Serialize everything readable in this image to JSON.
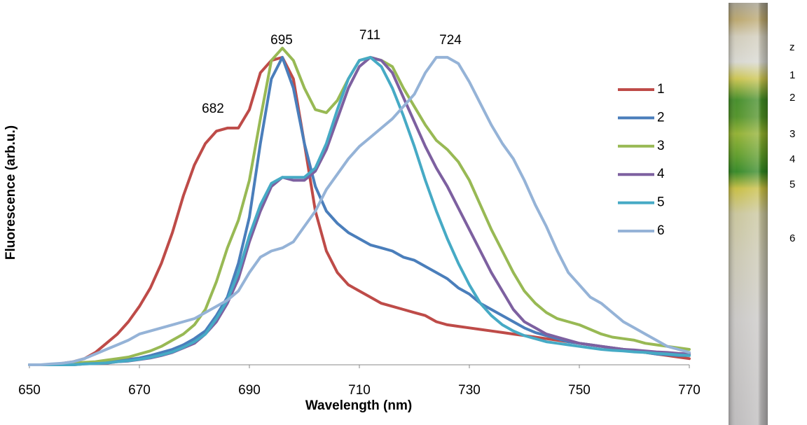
{
  "chart_data": {
    "type": "line",
    "x_label": "Wavelength (nm)",
    "y_label": "Fluorescence (arb.u.)",
    "x": [
      650,
      652,
      654,
      656,
      658,
      660,
      662,
      664,
      666,
      668,
      670,
      672,
      674,
      676,
      678,
      680,
      682,
      684,
      686,
      688,
      690,
      692,
      694,
      696,
      698,
      700,
      702,
      704,
      706,
      708,
      710,
      712,
      714,
      716,
      718,
      720,
      722,
      724,
      726,
      728,
      730,
      732,
      734,
      736,
      738,
      740,
      742,
      744,
      746,
      748,
      750,
      752,
      754,
      756,
      758,
      760,
      762,
      764,
      766,
      768,
      770
    ],
    "xlim": [
      650,
      770
    ],
    "xticks": [
      650,
      670,
      690,
      710,
      730,
      750,
      770
    ],
    "ylim": [
      0,
      1.1
    ],
    "annotations": [
      "682",
      "695",
      "711",
      "724"
    ],
    "series": [
      {
        "name": "1",
        "color": "#be4b48",
        "values": [
          0,
          0,
          0,
          0.005,
          0.01,
          0.02,
          0.04,
          0.07,
          0.1,
          0.14,
          0.19,
          0.25,
          0.33,
          0.43,
          0.55,
          0.65,
          0.72,
          0.76,
          0.77,
          0.77,
          0.83,
          0.95,
          0.99,
          1.0,
          0.93,
          0.72,
          0.5,
          0.37,
          0.3,
          0.26,
          0.24,
          0.22,
          0.2,
          0.19,
          0.18,
          0.17,
          0.16,
          0.14,
          0.13,
          0.125,
          0.12,
          0.115,
          0.11,
          0.105,
          0.1,
          0.095,
          0.09,
          0.085,
          0.08,
          0.075,
          0.07,
          0.065,
          0.06,
          0.055,
          0.05,
          0.045,
          0.04,
          0.035,
          0.03,
          0.025,
          0.02
        ]
      },
      {
        "name": "2",
        "color": "#4a7ebb",
        "values": [
          0,
          0,
          0,
          0,
          0.003,
          0.005,
          0.007,
          0.01,
          0.013,
          0.017,
          0.022,
          0.03,
          0.04,
          0.05,
          0.065,
          0.085,
          0.11,
          0.16,
          0.22,
          0.33,
          0.48,
          0.72,
          0.93,
          1.0,
          0.9,
          0.72,
          0.58,
          0.5,
          0.46,
          0.43,
          0.41,
          0.39,
          0.38,
          0.37,
          0.35,
          0.34,
          0.32,
          0.3,
          0.28,
          0.25,
          0.23,
          0.2,
          0.18,
          0.16,
          0.14,
          0.12,
          0.105,
          0.095,
          0.085,
          0.075,
          0.07,
          0.065,
          0.06,
          0.055,
          0.05,
          0.045,
          0.04,
          0.035,
          0.033,
          0.03,
          0.03
        ]
      },
      {
        "name": "3",
        "color": "#98b954",
        "values": [
          0,
          0,
          0,
          0.003,
          0.006,
          0.008,
          0.01,
          0.015,
          0.02,
          0.025,
          0.035,
          0.045,
          0.06,
          0.08,
          0.1,
          0.13,
          0.18,
          0.27,
          0.38,
          0.47,
          0.6,
          0.8,
          0.99,
          1.03,
          0.99,
          0.9,
          0.83,
          0.82,
          0.86,
          0.93,
          0.99,
          1.0,
          0.99,
          0.97,
          0.9,
          0.84,
          0.78,
          0.73,
          0.7,
          0.66,
          0.6,
          0.52,
          0.44,
          0.37,
          0.3,
          0.24,
          0.2,
          0.17,
          0.15,
          0.14,
          0.13,
          0.115,
          0.1,
          0.09,
          0.085,
          0.08,
          0.07,
          0.065,
          0.06,
          0.055,
          0.05
        ]
      },
      {
        "name": "4",
        "color": "#7d60a0",
        "values": [
          0,
          0,
          0,
          0,
          0,
          0.003,
          0.004,
          0.005,
          0.01,
          0.012,
          0.017,
          0.022,
          0.03,
          0.04,
          0.055,
          0.07,
          0.1,
          0.14,
          0.2,
          0.28,
          0.4,
          0.5,
          0.58,
          0.61,
          0.6,
          0.6,
          0.63,
          0.7,
          0.8,
          0.9,
          0.97,
          1.0,
          0.99,
          0.95,
          0.87,
          0.79,
          0.71,
          0.64,
          0.58,
          0.51,
          0.44,
          0.37,
          0.3,
          0.24,
          0.18,
          0.14,
          0.12,
          0.1,
          0.09,
          0.08,
          0.07,
          0.065,
          0.06,
          0.055,
          0.05,
          0.048,
          0.045,
          0.042,
          0.04,
          0.037,
          0.035
        ]
      },
      {
        "name": "5",
        "color": "#46aac5",
        "values": [
          0,
          0,
          0,
          0,
          0,
          0.003,
          0.004,
          0.006,
          0.01,
          0.013,
          0.018,
          0.024,
          0.032,
          0.042,
          0.057,
          0.075,
          0.1,
          0.15,
          0.21,
          0.3,
          0.42,
          0.52,
          0.59,
          0.61,
          0.61,
          0.61,
          0.64,
          0.72,
          0.83,
          0.93,
          0.99,
          1.0,
          0.97,
          0.9,
          0.81,
          0.71,
          0.6,
          0.5,
          0.41,
          0.33,
          0.26,
          0.2,
          0.16,
          0.13,
          0.11,
          0.095,
          0.085,
          0.075,
          0.07,
          0.065,
          0.06,
          0.055,
          0.05,
          0.047,
          0.045,
          0.042,
          0.04,
          0.037,
          0.035,
          0.032,
          0.03
        ]
      },
      {
        "name": "6",
        "color": "#95b3d7",
        "values": [
          0,
          0,
          0.003,
          0.005,
          0.01,
          0.02,
          0.035,
          0.05,
          0.065,
          0.08,
          0.1,
          0.11,
          0.12,
          0.13,
          0.14,
          0.15,
          0.17,
          0.19,
          0.21,
          0.24,
          0.3,
          0.35,
          0.37,
          0.38,
          0.4,
          0.45,
          0.5,
          0.57,
          0.62,
          0.67,
          0.71,
          0.74,
          0.77,
          0.8,
          0.84,
          0.88,
          0.95,
          1.0,
          1.0,
          0.98,
          0.92,
          0.85,
          0.78,
          0.72,
          0.67,
          0.6,
          0.52,
          0.45,
          0.37,
          0.3,
          0.26,
          0.22,
          0.2,
          0.17,
          0.14,
          0.12,
          0.1,
          0.08,
          0.06,
          0.05,
          0.04
        ]
      }
    ]
  },
  "photo_labels": [
    "z",
    "1",
    "2",
    "3",
    "4",
    "5",
    "6"
  ]
}
